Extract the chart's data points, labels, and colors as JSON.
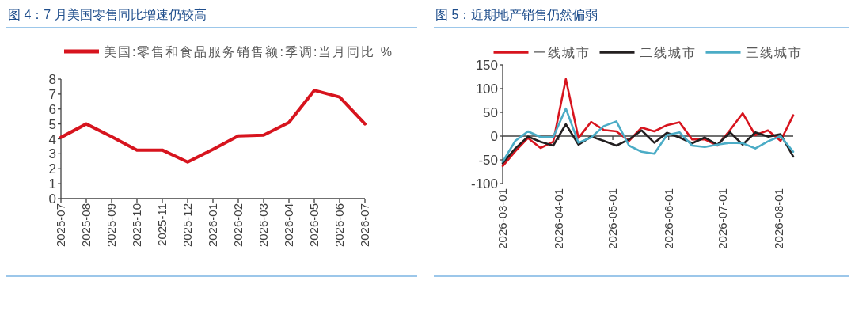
{
  "chart_data": [
    {
      "type": "line",
      "title": "图 4：7 月美国零售同比增速仍较高",
      "legend": "top",
      "categories": [
        "2025-07",
        "2025-08",
        "2025-09",
        "2025-10",
        "2025-11",
        "2025-12",
        "2026-01",
        "2026-02",
        "2026-03",
        "2026-04",
        "2026-05",
        "2026-06",
        "2026-07"
      ],
      "series": [
        {
          "name": "美国:零售和食品服务销售额:季调:当月同比 %",
          "color": "#d7141e",
          "values": [
            4.1,
            5.0,
            4.15,
            3.25,
            3.25,
            2.45,
            3.3,
            4.2,
            4.25,
            5.1,
            7.25,
            6.8,
            5.0
          ]
        }
      ],
      "ylim": [
        0,
        8
      ],
      "yticks": [
        0,
        1,
        2,
        3,
        4,
        5,
        6,
        7,
        8
      ]
    },
    {
      "type": "line",
      "title": "图 5：近期地产销售仍然偏弱",
      "legend": "top",
      "x": [
        "2026-03-01",
        "2026-03-08",
        "2026-03-15",
        "2026-03-22",
        "2026-03-29",
        "2026-04-05",
        "2026-04-12",
        "2026-04-19",
        "2026-04-26",
        "2026-05-03",
        "2026-05-10",
        "2026-05-17",
        "2026-05-24",
        "2026-05-31",
        "2026-06-07",
        "2026-06-14",
        "2026-06-21",
        "2026-06-28",
        "2026-07-05",
        "2026-07-12",
        "2026-07-19",
        "2026-07-26",
        "2026-08-02",
        "2026-08-09"
      ],
      "series": [
        {
          "name": "一线城市",
          "color": "#d7141e",
          "values": [
            -63,
            -32,
            -4,
            -25,
            -12,
            120,
            -4,
            30,
            13,
            10,
            -10,
            18,
            10,
            23,
            29,
            -7,
            -7,
            -20,
            13,
            48,
            2,
            12,
            -10,
            44
          ]
        },
        {
          "name": "二线城市",
          "color": "#231f20",
          "values": [
            -57,
            -26,
            -1,
            -12,
            -20,
            25,
            -18,
            -1,
            -10,
            -20,
            -7,
            12,
            -14,
            7,
            -3,
            -15,
            -3,
            -18,
            8,
            -18,
            8,
            -1,
            4,
            -43
          ]
        },
        {
          "name": "三线城市",
          "color": "#4bacc6",
          "values": [
            -54,
            -10,
            10,
            -2,
            -2,
            58,
            -14,
            -3,
            21,
            31,
            -20,
            -33,
            -37,
            2,
            8,
            -20,
            -23,
            -18,
            -14,
            -15,
            -26,
            -11,
            0,
            -33
          ]
        }
      ],
      "xlim": [
        "2026-03-01",
        "2026-08-09"
      ],
      "xticks": [
        "2026-03-01",
        "2026-04-01",
        "2026-05-01",
        "2026-06-01",
        "2026-07-01",
        "2026-08-01"
      ],
      "ylim": [
        -100,
        150
      ],
      "yticks": [
        -100,
        -50,
        0,
        50,
        100,
        150
      ]
    }
  ]
}
